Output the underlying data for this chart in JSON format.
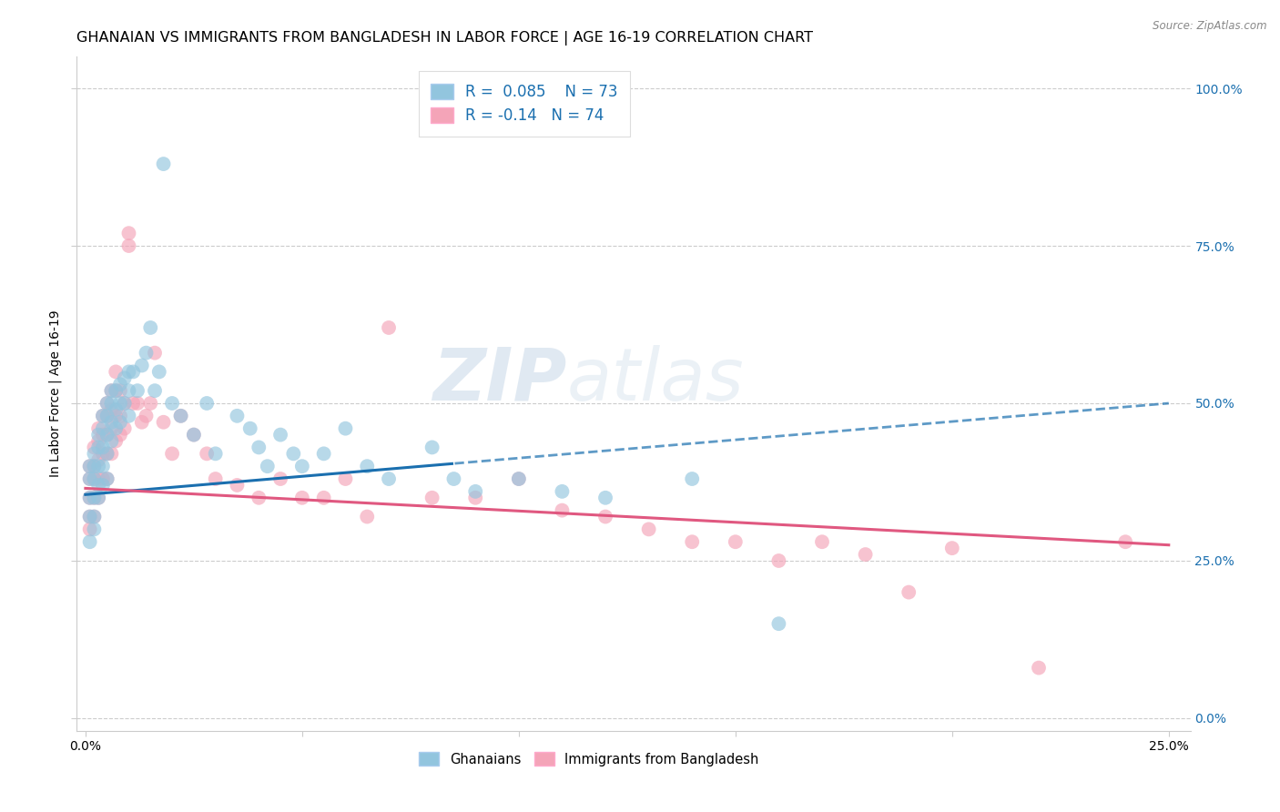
{
  "title": "GHANAIAN VS IMMIGRANTS FROM BANGLADESH IN LABOR FORCE | AGE 16-19 CORRELATION CHART",
  "source": "Source: ZipAtlas.com",
  "ylabel": "In Labor Force | Age 16-19",
  "x_ticks": [
    0.0,
    0.05,
    0.1,
    0.15,
    0.2,
    0.25
  ],
  "x_tick_labels": [
    "0.0%",
    "",
    "",
    "",
    "",
    "25.0%"
  ],
  "y_ticks": [
    0.0,
    0.25,
    0.5,
    0.75,
    1.0
  ],
  "y_tick_labels_left": [
    "",
    "",
    "",
    "",
    ""
  ],
  "y_tick_labels_right": [
    "0.0%",
    "25.0%",
    "50.0%",
    "75.0%",
    "100.0%"
  ],
  "xlim": [
    -0.002,
    0.255
  ],
  "ylim": [
    -0.02,
    1.05
  ],
  "R_ghanaian": 0.085,
  "N_ghanaian": 73,
  "R_bangladesh": -0.14,
  "N_bangladesh": 74,
  "blue_color": "#92c5de",
  "pink_color": "#f4a4b8",
  "blue_line_color": "#1a6faf",
  "pink_line_color": "#e05880",
  "watermark_text": "ZIPatlas",
  "title_fontsize": 11.5,
  "axis_label_fontsize": 10,
  "tick_fontsize": 10,
  "background_color": "#ffffff",
  "grid_color": "#cccccc",
  "blue_line_solid_end": 0.085,
  "ghanaian_x": [
    0.001,
    0.001,
    0.001,
    0.001,
    0.001,
    0.002,
    0.002,
    0.002,
    0.002,
    0.002,
    0.002,
    0.003,
    0.003,
    0.003,
    0.003,
    0.003,
    0.004,
    0.004,
    0.004,
    0.004,
    0.004,
    0.005,
    0.005,
    0.005,
    0.005,
    0.005,
    0.006,
    0.006,
    0.006,
    0.006,
    0.007,
    0.007,
    0.007,
    0.008,
    0.008,
    0.008,
    0.009,
    0.009,
    0.01,
    0.01,
    0.01,
    0.011,
    0.012,
    0.013,
    0.014,
    0.015,
    0.016,
    0.017,
    0.018,
    0.02,
    0.022,
    0.025,
    0.028,
    0.03,
    0.035,
    0.038,
    0.04,
    0.042,
    0.045,
    0.048,
    0.05,
    0.055,
    0.06,
    0.065,
    0.07,
    0.08,
    0.085,
    0.09,
    0.1,
    0.11,
    0.12,
    0.14,
    0.16
  ],
  "ghanaian_y": [
    0.38,
    0.4,
    0.35,
    0.32,
    0.28,
    0.42,
    0.4,
    0.38,
    0.35,
    0.32,
    0.3,
    0.45,
    0.43,
    0.4,
    0.37,
    0.35,
    0.48,
    0.46,
    0.43,
    0.4,
    0.37,
    0.5,
    0.48,
    0.45,
    0.42,
    0.38,
    0.52,
    0.5,
    0.47,
    0.44,
    0.52,
    0.49,
    0.46,
    0.53,
    0.5,
    0.47,
    0.54,
    0.5,
    0.55,
    0.52,
    0.48,
    0.55,
    0.52,
    0.56,
    0.58,
    0.62,
    0.52,
    0.55,
    0.88,
    0.5,
    0.48,
    0.45,
    0.5,
    0.42,
    0.48,
    0.46,
    0.43,
    0.4,
    0.45,
    0.42,
    0.4,
    0.42,
    0.46,
    0.4,
    0.38,
    0.43,
    0.38,
    0.36,
    0.38,
    0.36,
    0.35,
    0.38,
    0.15
  ],
  "bangladesh_x": [
    0.001,
    0.001,
    0.001,
    0.001,
    0.001,
    0.002,
    0.002,
    0.002,
    0.002,
    0.002,
    0.003,
    0.003,
    0.003,
    0.003,
    0.003,
    0.004,
    0.004,
    0.004,
    0.004,
    0.005,
    0.005,
    0.005,
    0.005,
    0.005,
    0.006,
    0.006,
    0.006,
    0.006,
    0.007,
    0.007,
    0.007,
    0.007,
    0.008,
    0.008,
    0.008,
    0.009,
    0.009,
    0.01,
    0.01,
    0.011,
    0.012,
    0.013,
    0.014,
    0.015,
    0.016,
    0.018,
    0.02,
    0.022,
    0.025,
    0.028,
    0.03,
    0.035,
    0.04,
    0.045,
    0.05,
    0.055,
    0.06,
    0.065,
    0.07,
    0.08,
    0.09,
    0.1,
    0.11,
    0.12,
    0.13,
    0.14,
    0.15,
    0.16,
    0.17,
    0.18,
    0.19,
    0.2,
    0.22,
    0.24
  ],
  "bangladesh_y": [
    0.4,
    0.38,
    0.35,
    0.32,
    0.3,
    0.43,
    0.4,
    0.38,
    0.35,
    0.32,
    0.46,
    0.44,
    0.41,
    0.38,
    0.35,
    0.48,
    0.45,
    0.42,
    0.38,
    0.5,
    0.48,
    0.45,
    0.42,
    0.38,
    0.52,
    0.49,
    0.46,
    0.42,
    0.55,
    0.52,
    0.48,
    0.44,
    0.52,
    0.48,
    0.45,
    0.5,
    0.46,
    0.77,
    0.75,
    0.5,
    0.5,
    0.47,
    0.48,
    0.5,
    0.58,
    0.47,
    0.42,
    0.48,
    0.45,
    0.42,
    0.38,
    0.37,
    0.35,
    0.38,
    0.35,
    0.35,
    0.38,
    0.32,
    0.62,
    0.35,
    0.35,
    0.38,
    0.33,
    0.32,
    0.3,
    0.28,
    0.28,
    0.25,
    0.28,
    0.26,
    0.2,
    0.27,
    0.08,
    0.28
  ]
}
